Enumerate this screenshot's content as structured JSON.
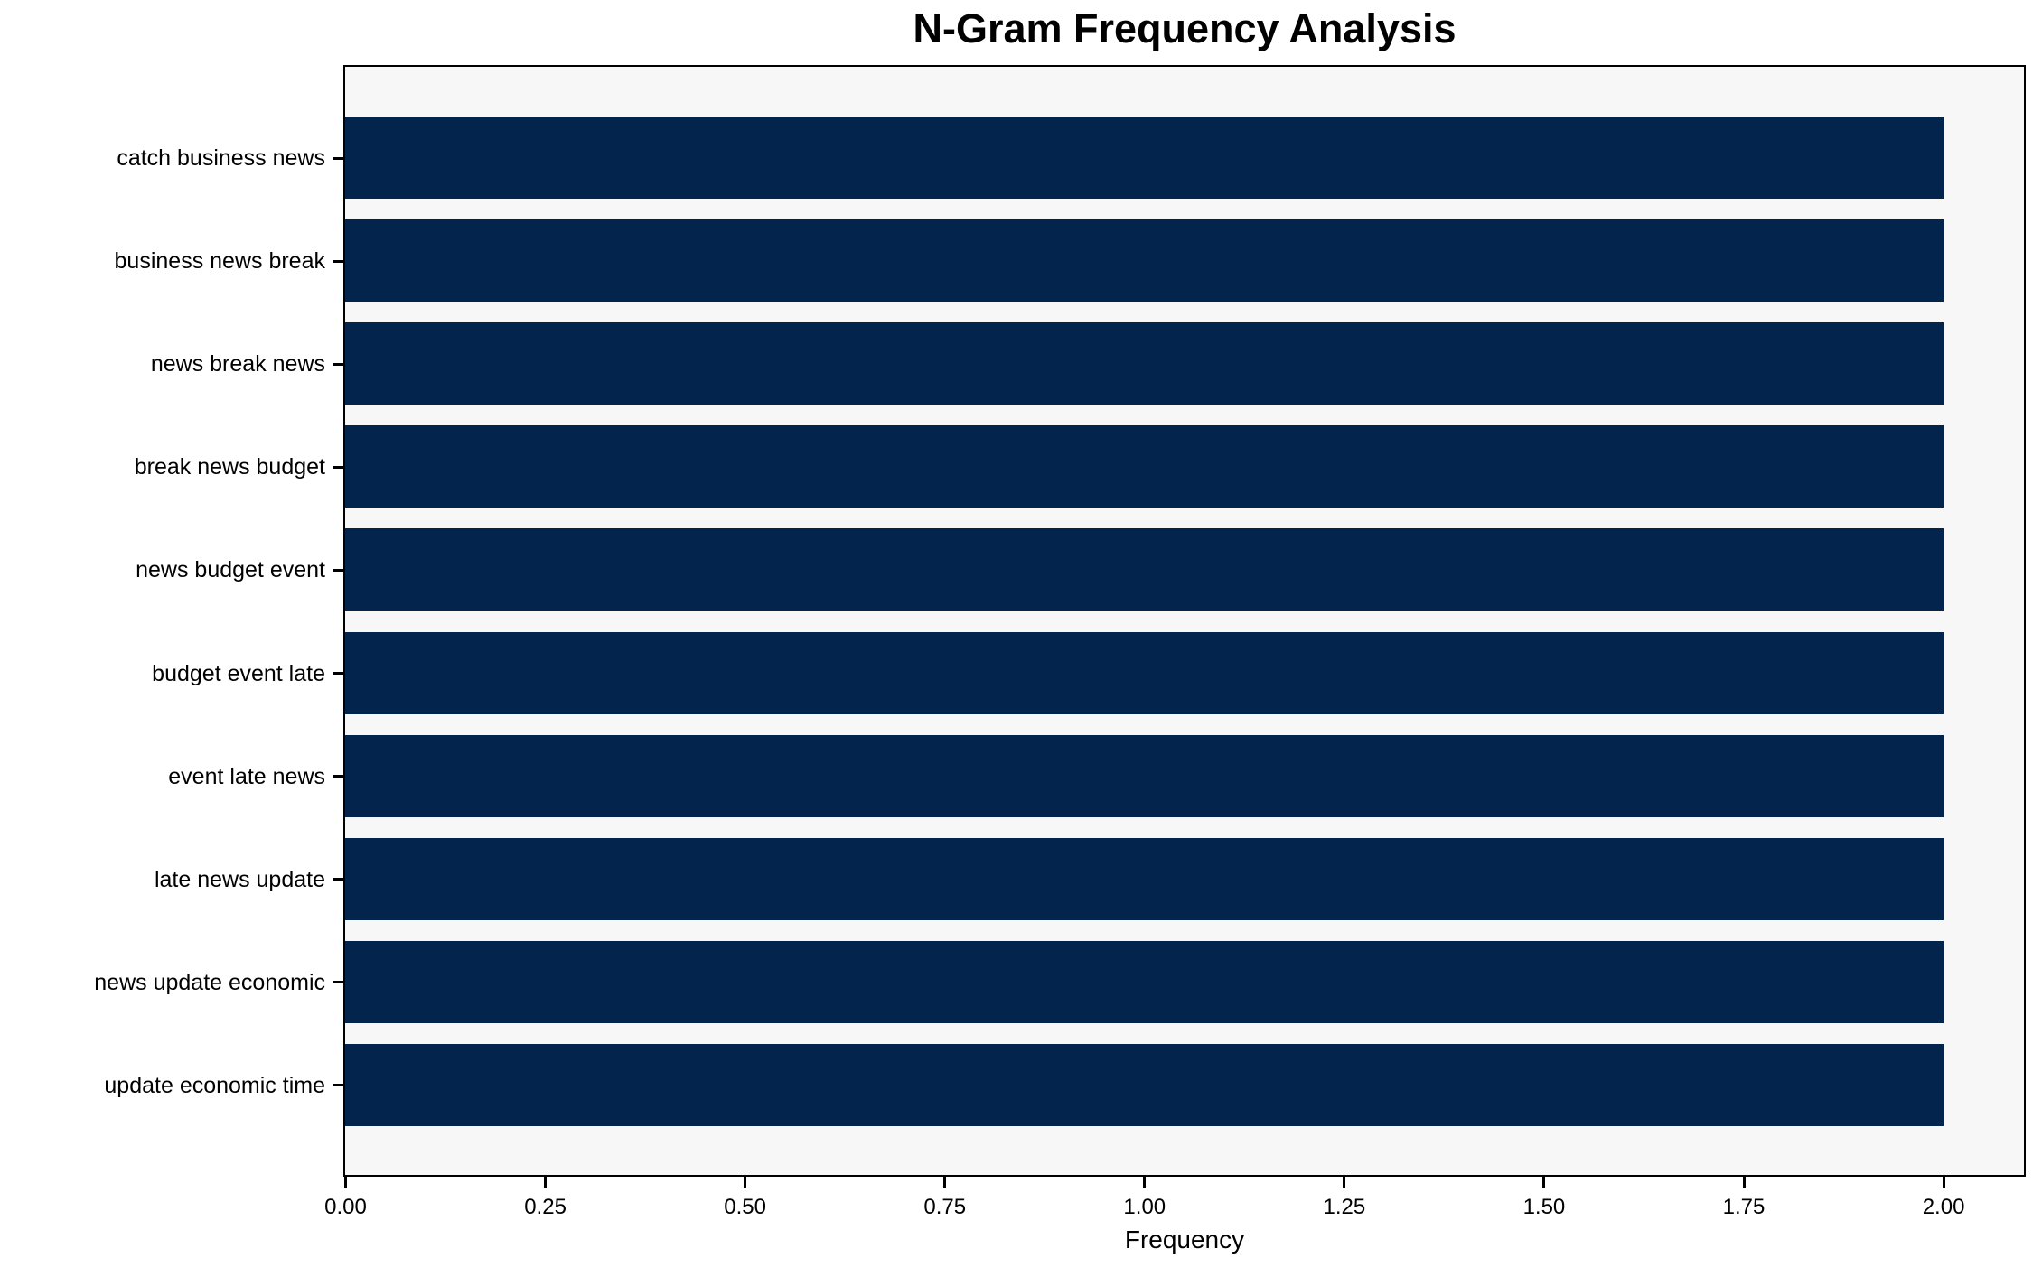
{
  "chart_data": {
    "type": "bar",
    "orientation": "horizontal",
    "title": "N-Gram Frequency Analysis",
    "xlabel": "Frequency",
    "categories": [
      "catch business news",
      "business news break",
      "news break news",
      "break news budget",
      "news budget event",
      "budget event late",
      "event late news",
      "late news update",
      "news update economic",
      "update economic time"
    ],
    "values": [
      2,
      2,
      2,
      2,
      2,
      2,
      2,
      2,
      2,
      2
    ],
    "xtick_labels": [
      "0.00",
      "0.25",
      "0.50",
      "0.75",
      "1.00",
      "1.25",
      "1.50",
      "1.75",
      "2.00"
    ],
    "xtick_values": [
      0.0,
      0.25,
      0.5,
      0.75,
      1.0,
      1.25,
      1.5,
      1.75,
      2.0
    ],
    "xlim": [
      0,
      2.1
    ],
    "grid": false,
    "legend": "none",
    "colors": {
      "bar": "#02244d",
      "plot_background": "#f7f7f7",
      "figure_background": "#ffffff",
      "axis": "#000000",
      "text": "#000000"
    }
  }
}
